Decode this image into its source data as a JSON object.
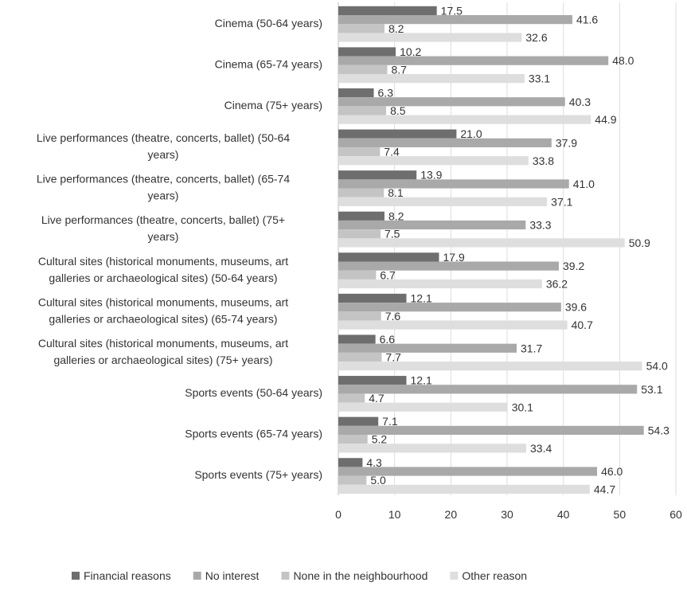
{
  "chart_data": {
    "type": "bar",
    "orientation": "horizontal",
    "categories": [
      [
        "Cinema (50-64 years)"
      ],
      [
        "Cinema (65-74 years)"
      ],
      [
        "Cinema (75+ years)"
      ],
      [
        "Live performances (theatre, concerts, ballet) (50-64",
        "years)"
      ],
      [
        "Live performances (theatre, concerts, ballet) (65-74",
        "years)"
      ],
      [
        "Live performances (theatre, concerts, ballet) (75+",
        "years)"
      ],
      [
        "Cultural sites (historical monuments, museums, art",
        "galleries or archaeological sites) (50-64 years)"
      ],
      [
        "Cultural sites (historical monuments, museums, art",
        "galleries or archaeological sites) (65-74 years)"
      ],
      [
        "Cultural sites (historical monuments, museums, art",
        "galleries or archaeological sites) (75+ years)"
      ],
      [
        "Sports events (50-64 years)"
      ],
      [
        "Sports events (65-74 years)"
      ],
      [
        "Sports events (75+ years)"
      ]
    ],
    "series": [
      {
        "name": "Financial reasons",
        "color": "#6e6e6e",
        "values": [
          17.5,
          10.2,
          6.3,
          21.0,
          13.9,
          8.2,
          17.9,
          12.1,
          6.6,
          12.1,
          7.1,
          4.3
        ]
      },
      {
        "name": "No interest",
        "color": "#a9a9a9",
        "values": [
          41.6,
          48.0,
          40.3,
          37.9,
          41.0,
          33.3,
          39.2,
          39.6,
          31.7,
          53.1,
          54.3,
          46.0
        ]
      },
      {
        "name": "None in the neighbourhood",
        "color": "#c4c4c4",
        "values": [
          8.2,
          8.7,
          8.5,
          7.4,
          8.1,
          7.5,
          6.7,
          7.6,
          7.7,
          4.7,
          5.2,
          5.0
        ]
      },
      {
        "name": "Other reason",
        "color": "#dedede",
        "values": [
          32.6,
          33.1,
          44.9,
          33.8,
          37.1,
          50.9,
          36.2,
          40.7,
          54.0,
          30.1,
          33.4,
          44.7
        ]
      }
    ],
    "xlim": [
      0,
      60
    ],
    "xticks": [
      0,
      10,
      20,
      30,
      40,
      50,
      60
    ],
    "grid": true,
    "legend_position": "bottom"
  }
}
